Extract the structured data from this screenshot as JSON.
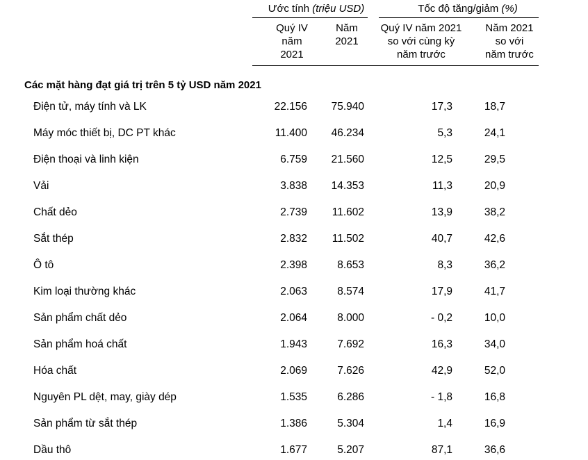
{
  "table": {
    "header": {
      "group1": {
        "label": "Ước tính ",
        "unit_italic": "(triệu USD)"
      },
      "group2": {
        "label": "Tốc độ tăng/giảm ",
        "unit_italic": "(%)"
      },
      "subcolumns": [
        {
          "id": "q4-2021",
          "lines": [
            "Quý IV",
            "năm",
            "2021"
          ]
        },
        {
          "id": "year-2021",
          "lines": [
            "Năm",
            "2021"
          ]
        },
        {
          "id": "growth-q4-vs-prior",
          "lines": [
            "Quý IV năm 2021",
            "so với cùng kỳ",
            "năm trước"
          ]
        },
        {
          "id": "growth-year-vs-prior",
          "lines": [
            "Năm 2021",
            "so với",
            "năm trước"
          ]
        }
      ]
    },
    "section_title": "Các mặt hàng đạt giá trị trên 5 tỷ USD năm 2021",
    "rows": [
      {
        "label": "Điện tử, máy tính và LK",
        "q4_2021": "22.156",
        "year_2021": "75.940",
        "growth_q4": "17,3",
        "growth_year": "18,7"
      },
      {
        "label": "Máy móc thiết bị, DC PT khác",
        "q4_2021": "11.400",
        "year_2021": "46.234",
        "growth_q4": "5,3",
        "growth_year": "24,1"
      },
      {
        "label": "Điện thoại và linh kiện",
        "q4_2021": "6.759",
        "year_2021": "21.560",
        "growth_q4": "12,5",
        "growth_year": "29,5"
      },
      {
        "label": "Vải",
        "q4_2021": "3.838",
        "year_2021": "14.353",
        "growth_q4": "11,3",
        "growth_year": "20,9"
      },
      {
        "label": "Chất dẻo",
        "q4_2021": "2.739",
        "year_2021": "11.602",
        "growth_q4": "13,9",
        "growth_year": "38,2"
      },
      {
        "label": "Sắt thép",
        "q4_2021": "2.832",
        "year_2021": "11.502",
        "growth_q4": "40,7",
        "growth_year": "42,6"
      },
      {
        "label": "Ô tô",
        "q4_2021": "2.398",
        "year_2021": "8.653",
        "growth_q4": "8,3",
        "growth_year": "36,2"
      },
      {
        "label": "Kim loại thường khác",
        "q4_2021": "2.063",
        "year_2021": "8.574",
        "growth_q4": "17,9",
        "growth_year": "41,7"
      },
      {
        "label": "Sản phẩm chất dẻo",
        "q4_2021": "2.064",
        "year_2021": "8.000",
        "growth_q4": "- 0,2",
        "growth_year": "10,0"
      },
      {
        "label": "Sản phẩm hoá chất",
        "q4_2021": "1.943",
        "year_2021": "7.692",
        "growth_q4": "16,3",
        "growth_year": "34,0"
      },
      {
        "label": "Hóa chất",
        "q4_2021": "2.069",
        "year_2021": "7.626",
        "growth_q4": "42,9",
        "growth_year": "52,0"
      },
      {
        "label": "Nguyên PL dệt, may, giày dép",
        "q4_2021": "1.535",
        "year_2021": "6.286",
        "growth_q4": "- 1,8",
        "growth_year": "16,8"
      },
      {
        "label": "Sản phẩm từ sắt thép",
        "q4_2021": "1.386",
        "year_2021": "5.304",
        "growth_q4": "1,4",
        "growth_year": "16,9"
      },
      {
        "label": "Dầu thô",
        "q4_2021": "1.677",
        "year_2021": "5.207",
        "growth_q4": "87,1",
        "growth_year": "36,6"
      }
    ]
  }
}
